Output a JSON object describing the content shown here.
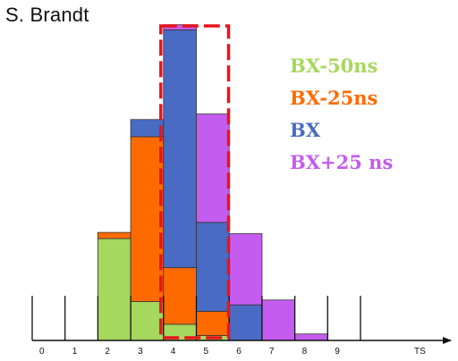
{
  "author": "S. Brandt",
  "chart_data": {
    "type": "bar",
    "stacked": true,
    "categories": [
      "0",
      "1",
      "2",
      "3",
      "4",
      "5",
      "6",
      "7",
      "8",
      "9"
    ],
    "axis_end_label": "TS",
    "ylim": [
      0,
      100
    ],
    "series": [
      {
        "name": "BX-50ns",
        "color": "#a6d85e",
        "values": [
          0,
          0,
          31.5,
          12,
          5,
          1.5,
          0,
          0,
          0,
          0
        ]
      },
      {
        "name": "BX-25ns",
        "color": "#ff6a00",
        "values": [
          0,
          0,
          1.9,
          51,
          17.5,
          7.5,
          0,
          0,
          0,
          0
        ]
      },
      {
        "name": "BX",
        "color": "#4a6bc4",
        "values": [
          0,
          0,
          0,
          5.3,
          73.5,
          27.5,
          11,
          0,
          0,
          0
        ]
      },
      {
        "name": "BX+25 ns",
        "color": "#c55cf0",
        "values": [
          0,
          0,
          0,
          0,
          1.6,
          33.5,
          22,
          12.5,
          2,
          0
        ]
      }
    ],
    "highlight_category": "4",
    "highlight_color": "#e8141c",
    "grid": false,
    "legend_position": "top-right"
  }
}
